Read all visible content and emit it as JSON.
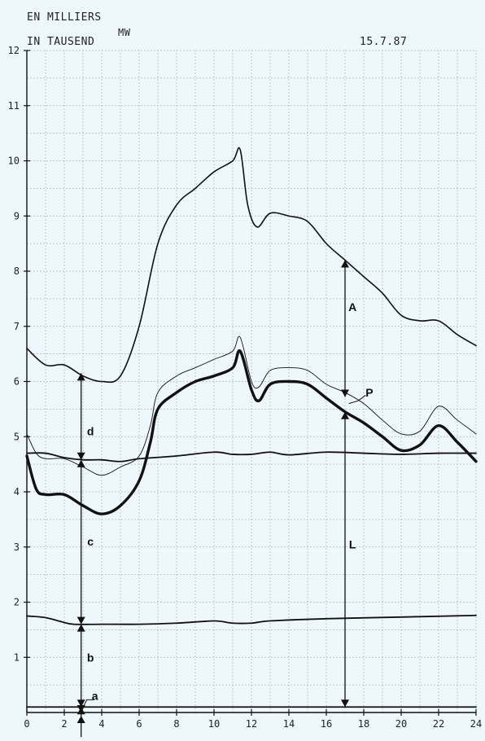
{
  "header": {
    "unit_fr": "EN MILLIERS",
    "unit_de": "IN TAUSEND",
    "unit_mw": "MW",
    "date": "15.7.87"
  },
  "colors": {
    "background": "#eef7fb",
    "ink": "#111111",
    "grid": "#9aa3a8"
  },
  "chart_data": {
    "type": "line",
    "xlim": [
      0,
      24
    ],
    "ylim": [
      0,
      12
    ],
    "x_ticks": [
      "0",
      "2",
      "4",
      "6",
      "8",
      "10",
      "12",
      "14",
      "16",
      "18",
      "20",
      "22",
      "24"
    ],
    "y_ticks": [
      "1",
      "2",
      "3",
      "4",
      "5",
      "6",
      "7",
      "8",
      "9",
      "10",
      "11",
      "12"
    ],
    "grid": true,
    "series": [
      {
        "key": "top",
        "style": "thin",
        "points": [
          [
            0,
            6.6
          ],
          [
            1,
            6.3
          ],
          [
            2,
            6.3
          ],
          [
            3,
            6.1
          ],
          [
            4,
            6.0
          ],
          [
            5,
            6.1
          ],
          [
            6,
            7.0
          ],
          [
            7,
            8.5
          ],
          [
            8,
            9.2
          ],
          [
            9,
            9.5
          ],
          [
            10,
            9.8
          ],
          [
            11,
            10.0
          ],
          [
            11.4,
            10.2
          ],
          [
            11.8,
            9.2
          ],
          [
            12.3,
            8.8
          ],
          [
            13,
            9.05
          ],
          [
            14,
            9.0
          ],
          [
            15,
            8.9
          ],
          [
            16,
            8.5
          ],
          [
            17,
            8.2
          ],
          [
            18,
            7.9
          ],
          [
            19,
            7.6
          ],
          [
            20,
            7.2
          ],
          [
            21,
            7.1
          ],
          [
            22,
            7.1
          ],
          [
            23,
            6.85
          ],
          [
            24,
            6.65
          ]
        ]
      },
      {
        "key": "p_thin",
        "style": "hairline",
        "points": [
          [
            0,
            5.05
          ],
          [
            0.5,
            4.7
          ],
          [
            1,
            4.6
          ],
          [
            2,
            4.6
          ],
          [
            3,
            4.45
          ],
          [
            4,
            4.3
          ],
          [
            5,
            4.45
          ],
          [
            6,
            4.65
          ],
          [
            6.6,
            5.2
          ],
          [
            7,
            5.8
          ],
          [
            8,
            6.1
          ],
          [
            9,
            6.25
          ],
          [
            10,
            6.4
          ],
          [
            11,
            6.55
          ],
          [
            11.4,
            6.8
          ],
          [
            12,
            6.0
          ],
          [
            12.4,
            5.9
          ],
          [
            13,
            6.2
          ],
          [
            14,
            6.25
          ],
          [
            15,
            6.2
          ],
          [
            16,
            5.95
          ],
          [
            17,
            5.8
          ],
          [
            18,
            5.6
          ],
          [
            19,
            5.3
          ],
          [
            20,
            5.05
          ],
          [
            21,
            5.1
          ],
          [
            22,
            5.55
          ],
          [
            23,
            5.3
          ],
          [
            24,
            5.05
          ]
        ]
      },
      {
        "key": "l_thick",
        "style": "thick",
        "points": [
          [
            0,
            4.65
          ],
          [
            0.5,
            4.05
          ],
          [
            1,
            3.95
          ],
          [
            2,
            3.95
          ],
          [
            3,
            3.75
          ],
          [
            4,
            3.6
          ],
          [
            5,
            3.75
          ],
          [
            6,
            4.2
          ],
          [
            6.6,
            4.9
          ],
          [
            7,
            5.5
          ],
          [
            8,
            5.8
          ],
          [
            9,
            6.0
          ],
          [
            10,
            6.1
          ],
          [
            11,
            6.25
          ],
          [
            11.4,
            6.55
          ],
          [
            12,
            5.85
          ],
          [
            12.4,
            5.65
          ],
          [
            13,
            5.95
          ],
          [
            14,
            6.0
          ],
          [
            15,
            5.95
          ],
          [
            16,
            5.7
          ],
          [
            17,
            5.45
          ],
          [
            18,
            5.25
          ],
          [
            19,
            5.0
          ],
          [
            20,
            4.75
          ],
          [
            21,
            4.85
          ],
          [
            22,
            5.2
          ],
          [
            23,
            4.9
          ],
          [
            24,
            4.55
          ]
        ]
      },
      {
        "key": "c_line",
        "style": "medium",
        "points": [
          [
            0,
            4.7
          ],
          [
            1,
            4.7
          ],
          [
            2,
            4.62
          ],
          [
            3,
            4.58
          ],
          [
            4,
            4.58
          ],
          [
            5,
            4.55
          ],
          [
            6,
            4.6
          ],
          [
            8,
            4.65
          ],
          [
            10,
            4.72
          ],
          [
            11,
            4.68
          ],
          [
            12,
            4.68
          ],
          [
            13,
            4.72
          ],
          [
            14,
            4.67
          ],
          [
            16,
            4.72
          ],
          [
            18,
            4.7
          ],
          [
            20,
            4.68
          ],
          [
            22,
            4.7
          ],
          [
            24,
            4.7
          ]
        ]
      },
      {
        "key": "b_line",
        "style": "medium",
        "points": [
          [
            0,
            1.75
          ],
          [
            1,
            1.72
          ],
          [
            1.8,
            1.65
          ],
          [
            2.5,
            1.6
          ],
          [
            4,
            1.6
          ],
          [
            6,
            1.6
          ],
          [
            8,
            1.62
          ],
          [
            10,
            1.66
          ],
          [
            11,
            1.62
          ],
          [
            12,
            1.62
          ],
          [
            13,
            1.66
          ],
          [
            16,
            1.7
          ],
          [
            20,
            1.73
          ],
          [
            24,
            1.76
          ]
        ]
      },
      {
        "key": "a_line",
        "style": "medium",
        "points": [
          [
            0,
            0.1
          ],
          [
            12,
            0.1
          ],
          [
            24,
            0.1
          ]
        ]
      }
    ],
    "annotations": [
      {
        "label": "a",
        "x": 2.9,
        "y": 0.3
      },
      {
        "label": "b",
        "x": 3.4,
        "y": 1.0
      },
      {
        "label": "c",
        "x": 3.4,
        "y": 3.1
      },
      {
        "label": "d",
        "x": 3.4,
        "y": 5.1
      },
      {
        "label": "A",
        "x": 17.4,
        "y": 7.35
      },
      {
        "label": "L",
        "x": 17.4,
        "y": 3.05
      },
      {
        "label": "P",
        "x": 18.3,
        "y": 5.8
      }
    ],
    "arrows": [
      {
        "x": 2.9,
        "from": 0.0,
        "to": 0.1
      },
      {
        "x": 2.9,
        "from": 0.1,
        "to": 1.6
      },
      {
        "x": 2.9,
        "from": 1.6,
        "to": 4.58
      },
      {
        "x": 2.9,
        "from": 4.58,
        "to": 6.15
      },
      {
        "x": 17,
        "from": 0.1,
        "to": 5.45
      },
      {
        "x": 17,
        "from": 5.72,
        "to": 8.2
      }
    ]
  }
}
